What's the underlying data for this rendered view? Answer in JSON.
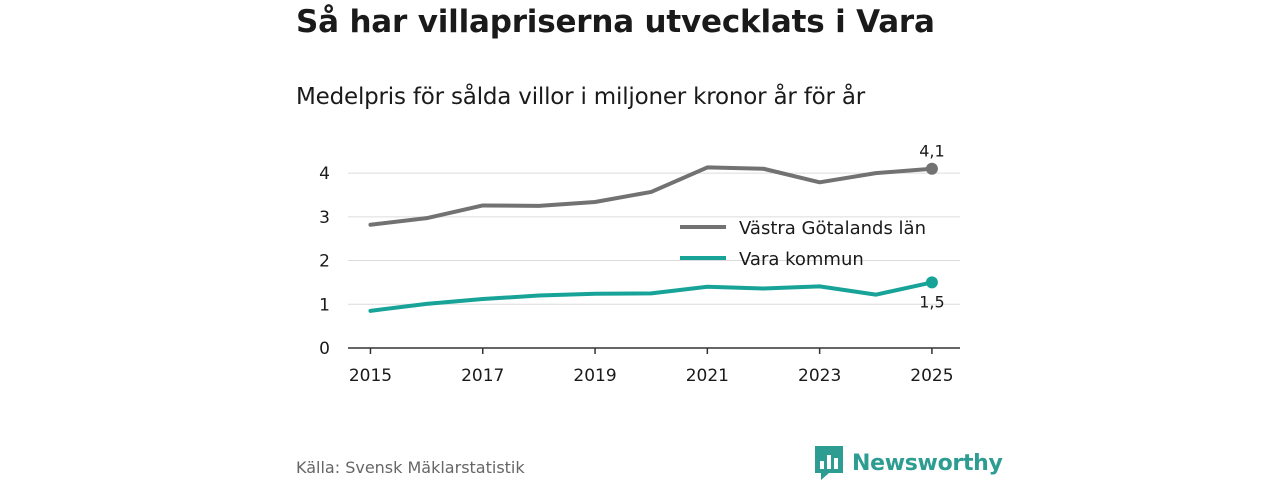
{
  "header": {
    "title": "Så har villapriserna utvecklats i Vara",
    "subtitle": "Medelpris för sålda villor i miljoner kronor år för år"
  },
  "footer": {
    "source": "Källa: Svensk Mäklarstatistik",
    "brand": "Newsworthy"
  },
  "colors": {
    "region": "#727272",
    "municipality": "#17a398",
    "grid": "#dcdcdc",
    "axis": "#333333",
    "brand": "#2d9c91"
  },
  "chart_data": {
    "type": "line",
    "title": "Så har villapriserna utvecklats i Vara",
    "subtitle": "Medelpris för sålda villor i miljoner kronor år för år",
    "xlabel": "",
    "ylabel": "",
    "x": [
      2015,
      2016,
      2017,
      2018,
      2019,
      2020,
      2021,
      2022,
      2023,
      2024,
      2025
    ],
    "xticks": [
      2015,
      2017,
      2019,
      2021,
      2023,
      2025
    ],
    "xlim": [
      2014.6,
      2025.5
    ],
    "yticks": [
      0,
      1,
      2,
      3,
      4
    ],
    "ylim": [
      0,
      4.3
    ],
    "grid": true,
    "legend_position": "right-middle",
    "series": [
      {
        "name": "Västra Götalands län",
        "color_key": "region",
        "values": [
          2.82,
          2.97,
          3.26,
          3.25,
          3.34,
          3.57,
          4.13,
          4.1,
          3.79,
          4.0,
          4.1
        ],
        "end_label": "4,1",
        "end_label_position": "above"
      },
      {
        "name": "Vara kommun",
        "color_key": "municipality",
        "values": [
          0.85,
          1.01,
          1.12,
          1.2,
          1.24,
          1.25,
          1.4,
          1.36,
          1.41,
          1.22,
          1.5
        ],
        "end_label": "1,5",
        "end_label_position": "below"
      }
    ]
  }
}
